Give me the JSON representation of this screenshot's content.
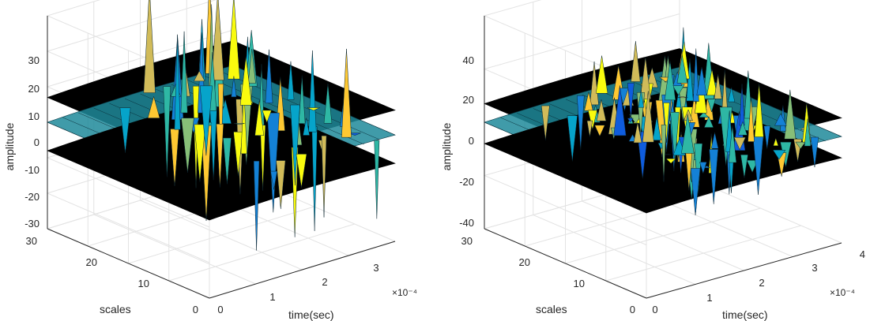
{
  "chart_data": [
    {
      "type": "surface",
      "view": "3d",
      "zlabel": "amplitude",
      "ylabel": "scales",
      "xlabel": "time(sec)",
      "x_exponent_label": "×10⁻⁴",
      "xlim": [
        0,
        3.5
      ],
      "ylim": [
        0,
        32
      ],
      "zlim": [
        -30,
        30
      ],
      "x_ticks": [
        "0",
        "1",
        "2",
        "3"
      ],
      "y_ticks": [
        "0",
        "10",
        "20",
        "30"
      ],
      "z_ticks": [
        "30",
        "20",
        "10",
        "0",
        "-10",
        "-20",
        "-30"
      ],
      "grid": true,
      "colormap": "parula",
      "surfaces": [
        {
          "name": "",
          "color": "#000000",
          "level": 7
        },
        {
          "name": "",
          "color": "colormap",
          "level": 0
        },
        {
          "name": "",
          "color": "#000000",
          "level": -8
        }
      ]
    },
    {
      "type": "surface",
      "view": "3d",
      "zlabel": "amplitude",
      "ylabel": "scales",
      "xlabel": "time(sec)",
      "x_exponent_label": "×10⁻⁴",
      "xlim": [
        0,
        4
      ],
      "ylim": [
        0,
        32
      ],
      "zlim": [
        -40,
        40
      ],
      "x_ticks": [
        "0",
        "1",
        "2",
        "3",
        "4"
      ],
      "y_ticks": [
        "0",
        "10",
        "20",
        "30"
      ],
      "z_ticks": [
        "40",
        "20",
        "0",
        "-20",
        "-40"
      ],
      "grid": true,
      "colormap": "parula",
      "surfaces": [
        {
          "name": "",
          "color": "#000000",
          "level": 7
        },
        {
          "name": "",
          "color": "colormap",
          "level": 0
        },
        {
          "name": "",
          "color": "#000000",
          "level": -8
        }
      ]
    }
  ]
}
